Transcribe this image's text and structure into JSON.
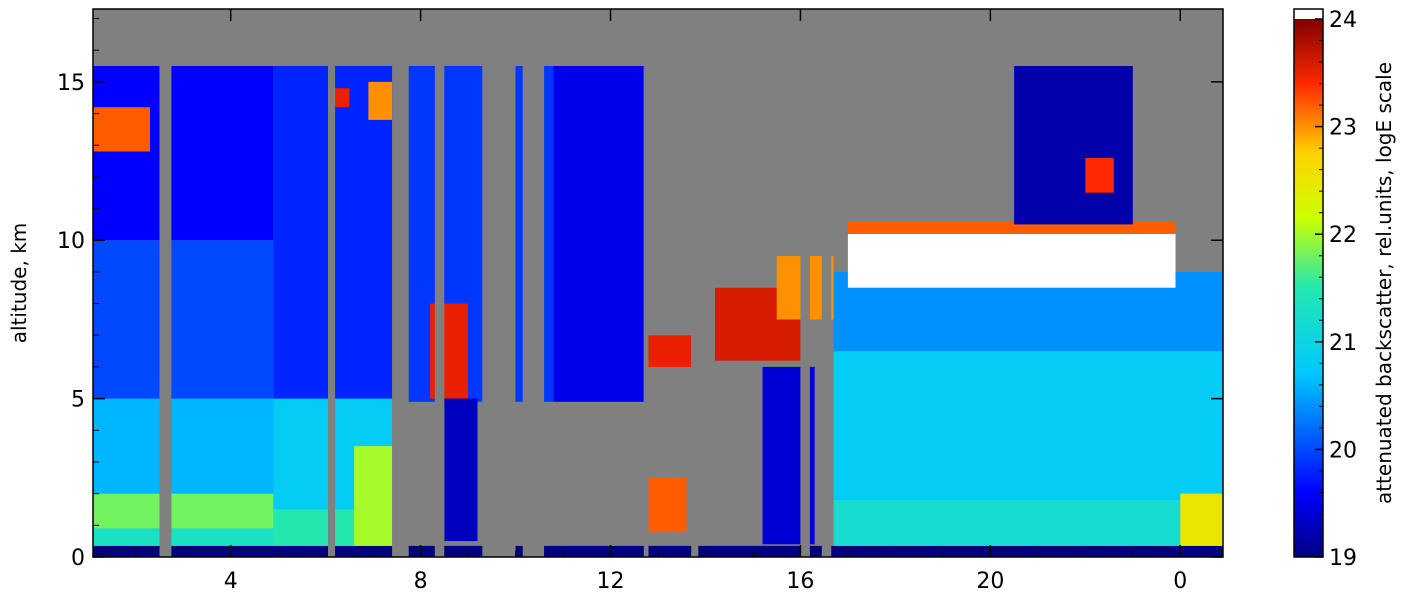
{
  "chart_data": {
    "type": "heatmap",
    "title": "",
    "xlabel": "",
    "ylabel": "altitude, km",
    "x_ticks": [
      "4",
      "8",
      "12",
      "16",
      "20",
      "0"
    ],
    "y_ticks": [
      0,
      5,
      10,
      15
    ],
    "ylim": [
      0,
      17.3
    ],
    "x_axis_note": "time of day in hours, wrapping past midnight (2 to 24, then 0)",
    "colorbar": {
      "label": "attenuated backscatter, rel.units, logE scale",
      "ticks": [
        19,
        20,
        21,
        22,
        23,
        24
      ],
      "range": [
        19,
        24
      ],
      "colormap": "jet",
      "saturated_color": "#ffffff"
    },
    "no_data_color": "#808080",
    "layers": [
      {
        "time_start": 1.1,
        "time_end": 24.9,
        "alt_bottom": 0.0,
        "alt_top": 0.35,
        "value": 19.0
      },
      {
        "time_start": 1.1,
        "time_end": 4.9,
        "alt_bottom": 0.35,
        "alt_top": 0.9,
        "value": 21.3
      },
      {
        "time_start": 1.1,
        "time_end": 4.9,
        "alt_bottom": 0.9,
        "alt_top": 2.0,
        "value": 21.8
      },
      {
        "time_start": 1.1,
        "time_end": 4.9,
        "alt_bottom": 2.0,
        "alt_top": 5.0,
        "value": 20.6
      },
      {
        "time_start": 1.1,
        "time_end": 4.9,
        "alt_bottom": 5.0,
        "alt_top": 10.0,
        "value": 20.0
      },
      {
        "time_start": 1.1,
        "time_end": 4.9,
        "alt_bottom": 10.0,
        "alt_top": 15.5,
        "value": 19.6
      },
      {
        "time_start": 1.1,
        "time_end": 2.3,
        "alt_bottom": 12.8,
        "alt_top": 14.2,
        "value": 23.2
      },
      {
        "time_start": 4.9,
        "time_end": 7.4,
        "alt_bottom": 0.35,
        "alt_top": 1.5,
        "value": 21.5
      },
      {
        "time_start": 4.9,
        "time_end": 7.4,
        "alt_bottom": 1.5,
        "alt_top": 5.0,
        "value": 20.8
      },
      {
        "time_start": 4.9,
        "time_end": 7.4,
        "alt_bottom": 5.0,
        "alt_top": 15.5,
        "value": 19.8
      },
      {
        "time_start": 6.6,
        "time_end": 7.4,
        "alt_bottom": 0.35,
        "alt_top": 3.5,
        "value": 22.0
      },
      {
        "time_start": 6.1,
        "time_end": 6.5,
        "alt_bottom": 14.2,
        "alt_top": 14.8,
        "value": 23.5
      },
      {
        "time_start": 6.9,
        "time_end": 7.4,
        "alt_bottom": 13.8,
        "alt_top": 15.0,
        "value": 23.0
      },
      {
        "time_start": 7.4,
        "time_end": 10.8,
        "alt_bottom": 4.9,
        "alt_top": 15.5,
        "value": 19.9
      },
      {
        "time_start": 10.8,
        "time_end": 12.7,
        "alt_bottom": 4.9,
        "alt_top": 15.5,
        "value": 19.5
      },
      {
        "time_start": 8.2,
        "time_end": 9.0,
        "alt_bottom": 5.0,
        "alt_top": 8.0,
        "value": 23.5
      },
      {
        "time_start": 8.5,
        "time_end": 9.2,
        "alt_bottom": 0.5,
        "alt_top": 5.0,
        "value": 19.3
      },
      {
        "time_start": 12.8,
        "time_end": 13.6,
        "alt_bottom": 0.8,
        "alt_top": 2.5,
        "value": 23.2
      },
      {
        "time_start": 12.7,
        "time_end": 13.7,
        "alt_bottom": 6.0,
        "alt_top": 7.0,
        "value": 23.5
      },
      {
        "time_start": 14.2,
        "time_end": 16.0,
        "alt_bottom": 6.2,
        "alt_top": 8.5,
        "value": 23.6
      },
      {
        "time_start": 15.5,
        "time_end": 16.7,
        "alt_bottom": 7.5,
        "alt_top": 9.5,
        "value": 23.0
      },
      {
        "time_start": 15.2,
        "time_end": 16.3,
        "alt_bottom": 0.4,
        "alt_top": 6.0,
        "value": 19.4
      },
      {
        "time_start": 16.7,
        "time_end": 24.9,
        "alt_bottom": 0.35,
        "alt_top": 1.8,
        "value": 21.2
      },
      {
        "time_start": 16.7,
        "time_end": 24.9,
        "alt_bottom": 1.8,
        "alt_top": 6.5,
        "value": 20.8
      },
      {
        "time_start": 16.7,
        "time_end": 24.9,
        "alt_bottom": 6.5,
        "alt_top": 9.0,
        "value": 20.4
      },
      {
        "time_start": 17.0,
        "time_end": 23.9,
        "alt_bottom": 8.5,
        "alt_top": 10.2,
        "value": 24.0
      },
      {
        "time_start": 17.0,
        "time_end": 23.9,
        "alt_bottom": 10.2,
        "alt_top": 10.6,
        "value": 23.2
      },
      {
        "time_start": 20.5,
        "time_end": 23.0,
        "alt_bottom": 10.5,
        "alt_top": 15.5,
        "value": 19.2
      },
      {
        "time_start": 22.0,
        "time_end": 22.6,
        "alt_bottom": 11.5,
        "alt_top": 12.6,
        "value": 23.4
      },
      {
        "time_start": 24.0,
        "time_end": 24.9,
        "alt_bottom": 0.35,
        "alt_top": 2.0,
        "value": 22.5
      }
    ],
    "no_data_periods": [
      {
        "time_start": 2.5,
        "time_end": 2.75
      },
      {
        "time_start": 6.05,
        "time_end": 6.2
      },
      {
        "time_start": 7.4,
        "time_end": 7.75
      },
      {
        "time_start": 8.3,
        "time_end": 8.5
      },
      {
        "time_start": 9.3,
        "time_end": 10.0
      },
      {
        "time_start": 10.15,
        "time_end": 10.6
      },
      {
        "time_start": 12.7,
        "time_end": 12.8
      },
      {
        "time_start": 13.7,
        "time_end": 13.85
      },
      {
        "time_start": 16.0,
        "time_end": 16.2
      },
      {
        "time_start": 16.45,
        "time_end": 16.65
      }
    ]
  }
}
